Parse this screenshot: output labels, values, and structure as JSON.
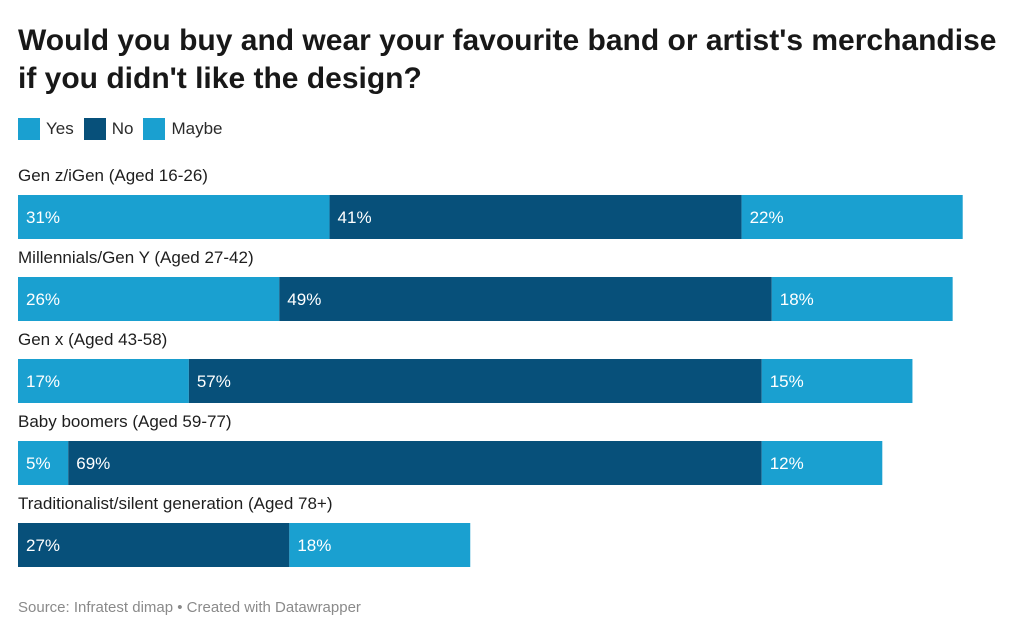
{
  "title": "Would you buy and wear your favourite band or artist's merchandise if you didn't like the design?",
  "legend": [
    {
      "label": "Yes",
      "color": "#1aa0d0"
    },
    {
      "label": "No",
      "color": "#07507a"
    },
    {
      "label": "Maybe",
      "color": "#1aa0d0"
    }
  ],
  "footer": {
    "source": "Source: Infratest dimap",
    "separator": " • ",
    "credit": "Created with Datawrapper"
  },
  "chart_data": {
    "type": "bar",
    "orientation": "horizontal",
    "stacked": true,
    "title": "Would you buy and wear your favourite band or artist's merchandise if you didn't like the design?",
    "value_suffix": "%",
    "xlim": [
      0,
      100
    ],
    "grid": false,
    "legend_position": "top-left",
    "categories": [
      "Gen z/iGen (Aged 16-26)",
      "Millennials/Gen Y (Aged 27-42)",
      "Gen x (Aged 43-58)",
      "Baby boomers (Aged 59-77)",
      "Traditionalist/silent generation (Aged 78+)"
    ],
    "series": [
      {
        "name": "Yes",
        "color": "#1aa0d0",
        "values": [
          31,
          26,
          17,
          5,
          null
        ]
      },
      {
        "name": "No",
        "color": "#07507a",
        "values": [
          41,
          49,
          57,
          69,
          27
        ]
      },
      {
        "name": "Maybe",
        "color": "#1aa0d0",
        "values": [
          22,
          18,
          15,
          12,
          18
        ]
      }
    ]
  }
}
